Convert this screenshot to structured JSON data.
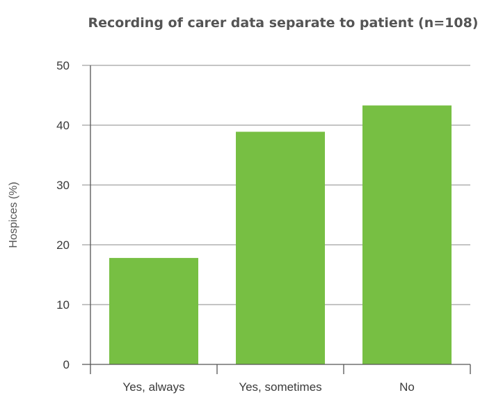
{
  "chart_data": {
    "type": "bar",
    "title": "Recording of carer data separate to patient (n=108)",
    "xlabel": "",
    "ylabel": "Hospices (%)",
    "categories": [
      "Yes, always",
      "Yes, sometimes",
      "No"
    ],
    "values": [
      17.8,
      38.9,
      43.3
    ],
    "ylim": [
      0,
      50
    ],
    "yticks": [
      0,
      10,
      20,
      30,
      40,
      50
    ],
    "grid": true,
    "legend": "none",
    "bar_color": "#77bf43"
  }
}
